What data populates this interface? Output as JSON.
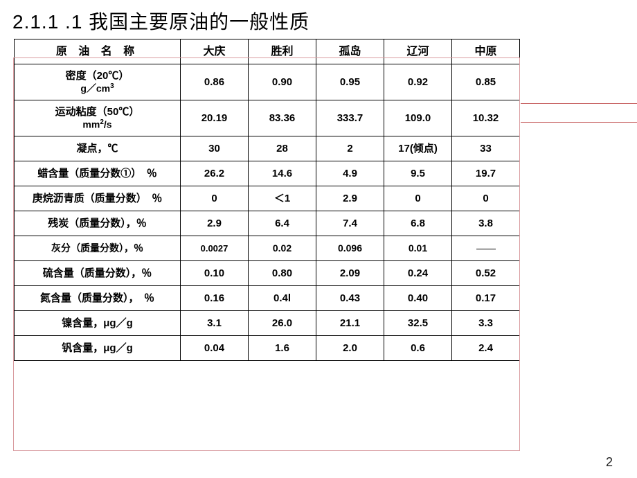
{
  "heading": "2.1.1 .1  我国主要原油的一般性质",
  "page_number": "2",
  "columns": [
    "原 油 名 称",
    "大庆",
    "胜利",
    "孤岛",
    "辽河",
    "中原"
  ],
  "rows": [
    {
      "label_main": "密度（20℃）",
      "label_sub": "g／cm³",
      "values": [
        "0.86",
        "0.90",
        "0.95",
        "0.92",
        "0.85"
      ],
      "cls": "row-density"
    },
    {
      "label_main": "运动粘度（50℃）",
      "label_sub": "mm²/s",
      "values": [
        "20.19",
        "83.36",
        "333.7",
        "109.0",
        "10.32"
      ],
      "cls": "row-visc"
    },
    {
      "label_main": "凝点，℃",
      "values": [
        "30",
        "28",
        "2",
        "17(倾点)",
        "33"
      ],
      "cls": "row-normal"
    },
    {
      "label_main": "蜡含量（质量分数①）　％",
      "values": [
        "26.2",
        "14.6",
        "4.9",
        "9.5",
        "19.7"
      ],
      "cls": "row-normal"
    },
    {
      "label_main": "庚烷沥青质（质量分数）　％",
      "values": [
        "0",
        "＜1",
        "2.9",
        "0",
        "0"
      ],
      "cls": "row-normal"
    },
    {
      "label_main": "残炭（质量分数），％",
      "values": [
        "2.9",
        "6.4",
        "7.4",
        "6.8",
        "3.8"
      ],
      "cls": "row-normal"
    },
    {
      "label_main": "灰分（质量分数），％",
      "values": [
        "0.0027",
        "0.02",
        "0.096",
        "0.01",
        "—"
      ],
      "cls": "row-ash",
      "dash_last": true
    },
    {
      "label_main": "硫含量（质量分数），％",
      "values": [
        "0.10",
        "0.80",
        "2.09",
        "0.24",
        "0.52"
      ],
      "cls": "row-normal"
    },
    {
      "label_main": "氮含量（质量分数），　％",
      "values": [
        "0.16",
        "0.4l",
        "0.43",
        "0.40",
        "0.17"
      ],
      "cls": "row-normal"
    },
    {
      "label_main": "镍含量，μg／g",
      "values": [
        "3.1",
        "26.0",
        "21.1",
        "32.5",
        "3.3"
      ],
      "cls": "row-normal"
    },
    {
      "label_main": "钒含量，μg／g",
      "values": [
        "0.04",
        "1.6",
        "2.0",
        "0.6",
        "2.4"
      ],
      "cls": "row-normal"
    }
  ],
  "accent_color": "#c45a5a"
}
